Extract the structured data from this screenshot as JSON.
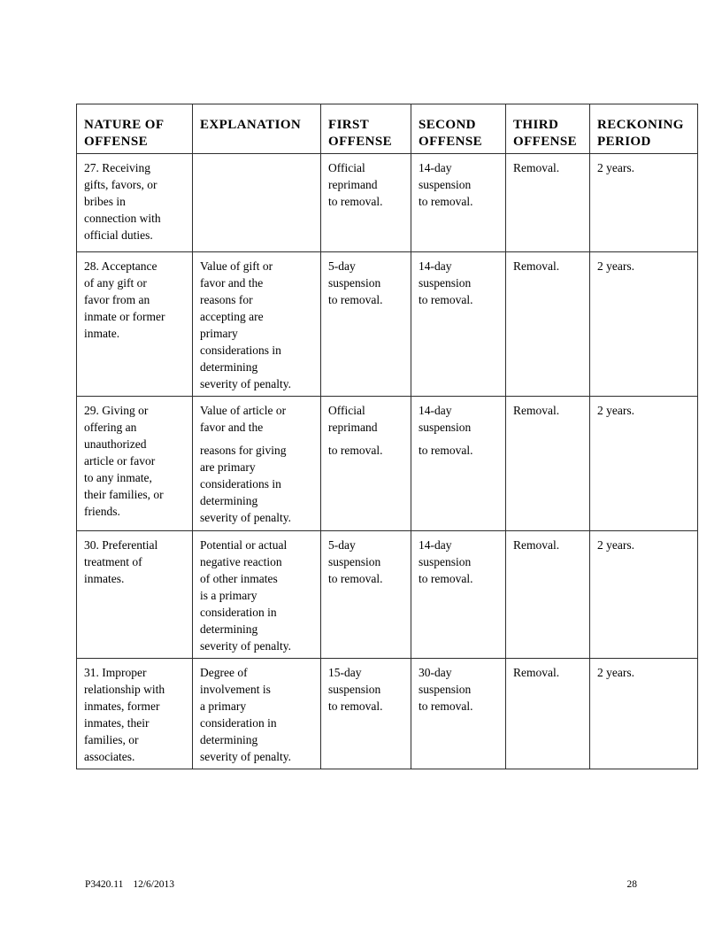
{
  "table": {
    "headers": [
      "NATURE OF\nOFFENSE",
      "EXPLANATION",
      "FIRST\nOFFENSE",
      "SECOND\nOFFENSE",
      "THIRD\nOFFENSE",
      "RECKONING\nPERIOD"
    ],
    "rows": [
      {
        "cells": [
          "27. Receiving\ngifts, favors, or\nbribes in\nconnection with\nofficial duties.",
          "",
          "Official\nreprimand\nto removal.",
          "14-day\nsuspension\nto removal.",
          "Removal.",
          "2 years."
        ]
      },
      {
        "cells": [
          "28. Acceptance\nof any gift or\nfavor from an\ninmate or former\ninmate.",
          "Value of gift or\nfavor and the\nreasons for\naccepting are\nprimary\nconsiderations in\ndetermining\nseverity of penalty.",
          "5-day\nsuspension\nto removal.",
          "14-day\nsuspension\nto removal.",
          "Removal.",
          "2 years."
        ]
      },
      {
        "cells": [
          "29. Giving or\noffering an\nunauthorized\narticle or favor\nto any inmate,\ntheir families, or\nfriends.",
          "Value of article or\nfavor and the\n\nreasons for giving\nare primary\nconsiderations in\ndetermining\nseverity of penalty.",
          "Official\nreprimand\n\nto removal.",
          "14-day\nsuspension\n\nto removal.",
          "Removal.",
          "2 years."
        ]
      },
      {
        "cells": [
          "30. Preferential\ntreatment of\ninmates.",
          "Potential or actual\nnegative reaction\nof other inmates\nis a primary\nconsideration in\ndetermining\nseverity of penalty.",
          "5-day\nsuspension\nto removal.",
          "14-day\nsuspension\nto removal.",
          "Removal.",
          "2 years."
        ]
      },
      {
        "cells": [
          "31. Improper\nrelationship with\ninmates, former\ninmates, their\nfamilies, or\nassociates.",
          "Degree of\ninvolvement is\na primary\nconsideration in\ndetermining\nseverity of penalty.",
          "15-day\nsuspension\nto removal.",
          "30-day\nsuspension\nto removal.",
          "Removal.",
          "2 years."
        ]
      }
    ]
  },
  "footer": {
    "doc_number": "P3420.11",
    "date": "12/6/2013",
    "page_number": "28"
  }
}
